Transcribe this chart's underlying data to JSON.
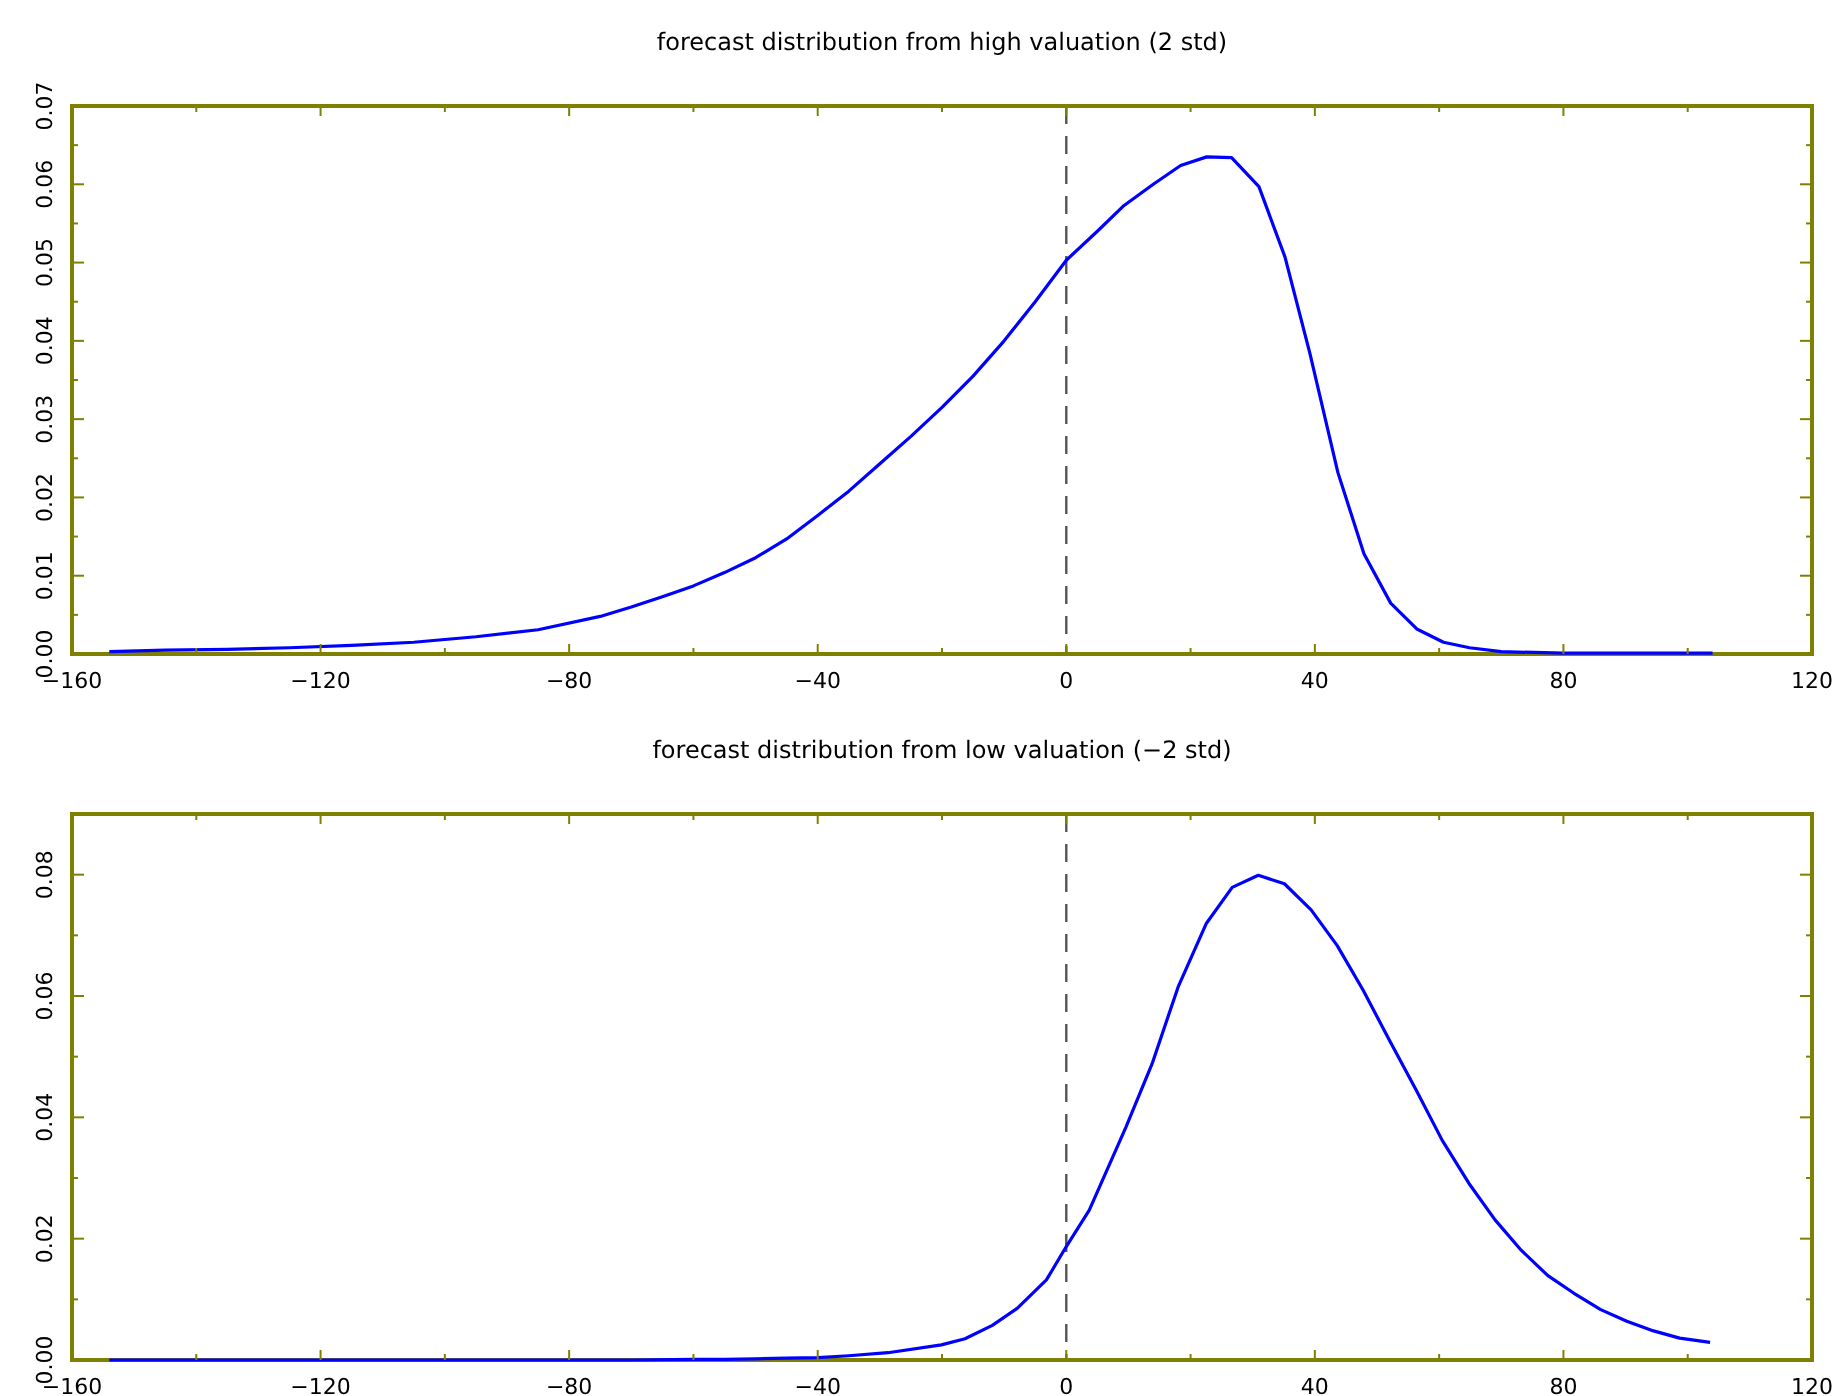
{
  "chart_data": [
    {
      "type": "line",
      "title": "forecast distribution from high valuation (2 std)",
      "xlim": [
        -160,
        120
      ],
      "xticks": [
        -160,
        {
          "value": -140,
          "label": null
        },
        -120,
        {
          "value": -100,
          "label": null
        },
        -80,
        {
          "value": -60,
          "label": null
        },
        -40,
        {
          "value": -20,
          "label": null
        },
        0,
        {
          "value": 20,
          "label": null
        },
        40,
        {
          "value": 60,
          "label": null
        },
        80,
        {
          "value": 100,
          "label": null
        },
        120
      ],
      "ylim": [
        0,
        0.07
      ],
      "yticks": [
        {
          "value": 0,
          "label": "0.00"
        },
        {
          "value": 0.005,
          "label": null
        },
        {
          "value": 0.01,
          "label": "0.01"
        },
        {
          "value": 0.015,
          "label": null
        },
        {
          "value": 0.02,
          "label": "0.02"
        },
        {
          "value": 0.025,
          "label": null
        },
        {
          "value": 0.03,
          "label": "0.03"
        },
        {
          "value": 0.035,
          "label": null
        },
        {
          "value": 0.04,
          "label": "0.04"
        },
        {
          "value": 0.045,
          "label": null
        },
        {
          "value": 0.05,
          "label": "0.05"
        },
        {
          "value": 0.055,
          "label": null
        },
        {
          "value": 0.06,
          "label": "0.06"
        },
        {
          "value": 0.065,
          "label": null
        },
        {
          "value": 0.07,
          "label": "0.07"
        }
      ],
      "x": [
        -154,
        -145,
        -135,
        -125,
        -115,
        -105,
        -95,
        -85,
        -75,
        -70,
        -65,
        -60,
        -55,
        -50,
        -45,
        -40,
        -35,
        -30,
        -25,
        -20,
        -15,
        -10,
        -5,
        0,
        5,
        9.3,
        14,
        18.4,
        22.6,
        26.6,
        31,
        35.2,
        39.2,
        43.7,
        47.9,
        52.2,
        56.4,
        60.7,
        64.9,
        70,
        80,
        90,
        104
      ],
      "series": [
        {
          "color": "#0000ff",
          "values": [
            0.0003,
            0.0005,
            0.0006,
            0.0008,
            0.0011,
            0.0015,
            0.0022,
            0.0031,
            0.0048,
            0.006,
            0.0073,
            0.0087,
            0.0104,
            0.0123,
            0.0147,
            0.0177,
            0.0208,
            0.0243,
            0.0278,
            0.0315,
            0.0355,
            0.04,
            0.045,
            0.0503,
            0.054,
            0.0573,
            0.06,
            0.0624,
            0.0635,
            0.0634,
            0.0597,
            0.0507,
            0.0384,
            0.0232,
            0.0128,
            0.0065,
            0.0032,
            0.0015,
            0.0008,
            0.0003,
            0.0001,
            0.0001,
            0.0001
          ]
        }
      ],
      "ref_lines": [
        {
          "axis": "x",
          "value": 0,
          "color": "#555555",
          "line_style": "dashed"
        }
      ]
    },
    {
      "type": "line",
      "title": "forecast distribution from low valuation (−2 std)",
      "xlim": [
        -160,
        120
      ],
      "xticks": [
        -160,
        {
          "value": -140,
          "label": null
        },
        -120,
        {
          "value": -100,
          "label": null
        },
        -80,
        {
          "value": -60,
          "label": null
        },
        -40,
        {
          "value": -20,
          "label": null
        },
        0,
        {
          "value": 20,
          "label": null
        },
        40,
        {
          "value": 60,
          "label": null
        },
        80,
        {
          "value": 100,
          "label": null
        },
        120
      ],
      "ylim": [
        0,
        0.09
      ],
      "yticks": [
        {
          "value": 0,
          "label": "0.00"
        },
        {
          "value": 0.01,
          "label": null
        },
        {
          "value": 0.02,
          "label": "0.02"
        },
        {
          "value": 0.03,
          "label": null
        },
        {
          "value": 0.04,
          "label": "0.04"
        },
        {
          "value": 0.05,
          "label": null
        },
        {
          "value": 0.06,
          "label": "0.06"
        },
        {
          "value": 0.07,
          "label": null
        },
        {
          "value": 0.08,
          "label": "0.08"
        },
        {
          "value": 0.09,
          "label": null
        }
      ],
      "x": [
        -154,
        -130,
        -110,
        -90,
        -70,
        -60,
        -55,
        -50,
        -45,
        -40,
        -35,
        -28.7,
        -20.1,
        -16.3,
        -11.9,
        -7.9,
        -3.2,
        0,
        3.7,
        9.6,
        13.8,
        18,
        22.5,
        26.7,
        30.9,
        35.1,
        39.4,
        43.6,
        47.8,
        52,
        56.3,
        60.5,
        64.8,
        69,
        73.2,
        77.5,
        81.7,
        86,
        90.2,
        94.5,
        98.7,
        103.6
      ],
      "series": [
        {
          "color": "#0000ff",
          "values": [
            0,
            0,
            0,
            0,
            0,
            0.0001,
            0.0001,
            0.0002,
            0.0003,
            0.0004,
            0.0007,
            0.0012,
            0.0025,
            0.0035,
            0.0057,
            0.0085,
            0.0132,
            0.0187,
            0.0247,
            0.0384,
            0.0488,
            0.0615,
            0.0719,
            0.0779,
            0.0799,
            0.0785,
            0.0742,
            0.0683,
            0.0609,
            0.0527,
            0.0445,
            0.0362,
            0.0291,
            0.0231,
            0.0181,
            0.0139,
            0.011,
            0.0083,
            0.0064,
            0.0048,
            0.0036,
            0.0029
          ]
        }
      ],
      "ref_lines": [
        {
          "axis": "x",
          "value": 0,
          "color": "#555555",
          "line_style": "dashed"
        }
      ]
    }
  ]
}
